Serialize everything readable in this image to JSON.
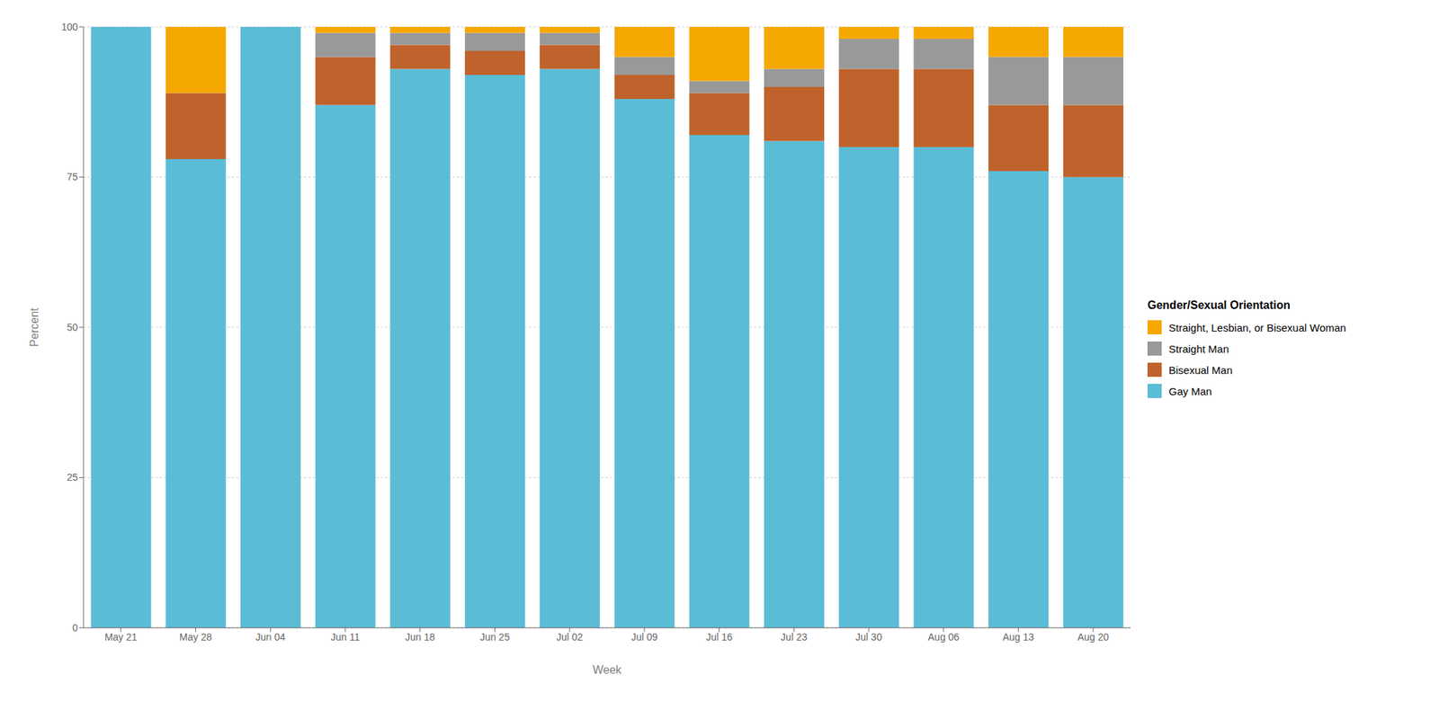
{
  "chart_data": {
    "type": "bar",
    "stacked": true,
    "xlabel": "Week",
    "ylabel": "Percent",
    "legend_title": "Gender/Sexual Orientation",
    "legend": "right",
    "grid": true,
    "categories": [
      "May 21",
      "May 28",
      "Jun 04",
      "Jun 11",
      "Jun 18",
      "Jun 25",
      "Jul 02",
      "Jul 09",
      "Jul 16",
      "Jul 23",
      "Jul 30",
      "Aug 06",
      "Aug 13",
      "Aug 20"
    ],
    "series": [
      {
        "name": "Gay Man",
        "color": "#5BBCD6",
        "values": [
          100,
          78,
          100,
          87,
          93,
          92,
          93,
          88,
          82,
          81,
          80,
          80,
          76,
          75
        ]
      },
      {
        "name": "Bisexual Man",
        "color": "#C0622B",
        "values": [
          0,
          11,
          0,
          8,
          4,
          4,
          4,
          4,
          7,
          9,
          13,
          13,
          11,
          12
        ]
      },
      {
        "name": "Straight Man",
        "color": "#999999",
        "values": [
          0,
          0,
          0,
          4,
          2,
          3,
          2,
          3,
          2,
          3,
          5,
          5,
          8,
          8
        ]
      },
      {
        "name": "Straight, Lesbian, or Bisexual Woman",
        "color": "#F5A800",
        "values": [
          0,
          11,
          0,
          1,
          1,
          1,
          1,
          5,
          9,
          7,
          2,
          2,
          5,
          5
        ]
      }
    ],
    "ylim": [
      0,
      100
    ],
    "yticks": [
      0,
      25,
      50,
      75,
      100
    ]
  }
}
